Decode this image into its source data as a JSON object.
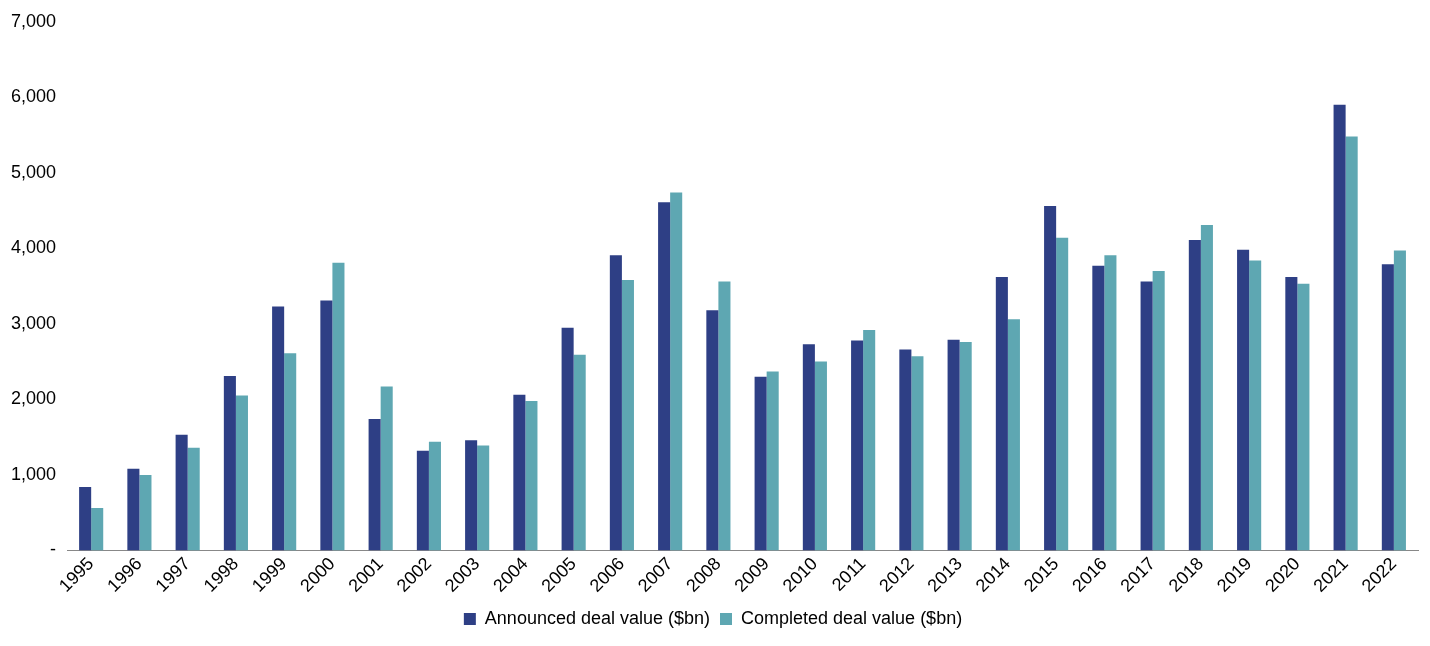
{
  "chart_data": {
    "type": "bar",
    "categories": [
      "1995",
      "1996",
      "1997",
      "1998",
      "1999",
      "2000",
      "2001",
      "2002",
      "2003",
      "2004",
      "2005",
      "2006",
      "2007",
      "2008",
      "2009",
      "2010",
      "2011",
      "2012",
      "2013",
      "2014",
      "2015",
      "2016",
      "2017",
      "2018",
      "2019",
      "2020",
      "2021",
      "2022"
    ],
    "series": [
      {
        "name": "Announced deal value ($bn)",
        "color": "#2e3f85",
        "values": [
          840,
          1080,
          1530,
          2310,
          3230,
          3310,
          1740,
          1320,
          1460,
          2060,
          2950,
          3910,
          4610,
          3180,
          2300,
          2730,
          2780,
          2660,
          2790,
          3620,
          4560,
          3770,
          3560,
          4110,
          3980,
          3620,
          5900,
          3790
        ]
      },
      {
        "name": "Completed deal value ($bn)",
        "color": "#5ea7b2",
        "values": [
          560,
          1000,
          1360,
          2050,
          2610,
          3810,
          2170,
          1440,
          1390,
          1980,
          2590,
          3580,
          4740,
          3560,
          2370,
          2500,
          2920,
          2570,
          2760,
          3060,
          4140,
          3910,
          3700,
          4310,
          3840,
          3530,
          5480,
          3970
        ]
      }
    ],
    "ylim": [
      0,
      7000
    ],
    "yticks": [
      {
        "value": 0,
        "label": "-"
      },
      {
        "value": 1000,
        "label": "1,000"
      },
      {
        "value": 2000,
        "label": "2,000"
      },
      {
        "value": 3000,
        "label": "3,000"
      },
      {
        "value": 4000,
        "label": "4,000"
      },
      {
        "value": 5000,
        "label": "5,000"
      },
      {
        "value": 6000,
        "label": "6,000"
      },
      {
        "value": 7000,
        "label": "7,000"
      }
    ],
    "grid": false,
    "legend": "bottom"
  }
}
